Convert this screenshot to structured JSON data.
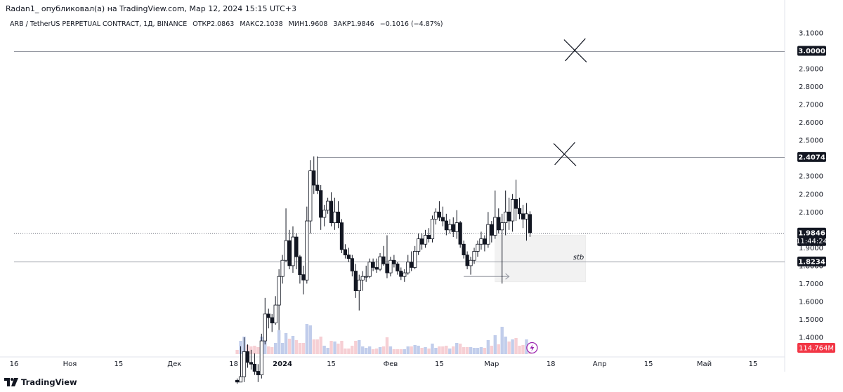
{
  "header": {
    "author": "Radan1_",
    "published_text": "опубликовал(а) на TradingView.com, Мар 12, 2024 15:15 UTC+3"
  },
  "legend": {
    "symbol": "ARB / TetherUS PERPETUAL CONTRACT, 1Д, BINANCE",
    "open": "ОТКР2.0863",
    "high": "МАКС2.1038",
    "low": "МИН1.9608",
    "close": "ЗАКР1.9846",
    "change": "−0.1016 (−4.87%)"
  },
  "price_labels": {
    "level_top": "3.0000",
    "level_mid": "2.4074",
    "last_price": "1.9846",
    "countdown": "11:44:24",
    "level_support": "1.8234",
    "volume": "114.764M"
  },
  "annotation_text": "stb",
  "footer": {
    "brand": "TradingView"
  },
  "colors": {
    "candle_up_fill": "#ffffff",
    "candle_down_fill": "#131722",
    "candle_border": "#131722",
    "volume_up": "#b6c4e8",
    "volume_down": "#f4c7cc",
    "label_bg": "#131722",
    "volume_label_bg": "#f23645",
    "zone_fill": "#f2f2f2"
  },
  "chart_data": {
    "type": "candlestick",
    "title": "ARB / TetherUS PERPETUAL CONTRACT, 1Д, BINANCE",
    "y_ticks": [
      3.1,
      2.9,
      2.8,
      2.7,
      2.6,
      2.5,
      2.3,
      2.2,
      2.1,
      1.9,
      1.8,
      1.7,
      1.6,
      1.5,
      1.4
    ],
    "y_tick_labels": [
      "3.1000",
      "2.9000",
      "2.8000",
      "2.7000",
      "2.6000",
      "2.5000",
      "2.3000",
      "2.2000",
      "2.1000",
      "1.9000",
      "1.8000",
      "1.7000",
      "1.6000",
      "1.5000",
      "1.4000"
    ],
    "x_ticks": [
      {
        "label": "16",
        "date": "2023-10-16"
      },
      {
        "label": "Ноя",
        "date": "2023-11-01"
      },
      {
        "label": "15",
        "date": "2023-11-15"
      },
      {
        "label": "Дек",
        "date": "2023-12-01"
      },
      {
        "label": "18",
        "date": "2023-12-18"
      },
      {
        "label": "2024",
        "date": "2024-01-01",
        "bold": true
      },
      {
        "label": "15",
        "date": "2024-01-15"
      },
      {
        "label": "Фев",
        "date": "2024-02-01"
      },
      {
        "label": "15",
        "date": "2024-02-15"
      },
      {
        "label": "Мар",
        "date": "2024-03-01"
      },
      {
        "label": "18",
        "date": "2024-03-18"
      },
      {
        "label": "Апр",
        "date": "2024-04-01"
      },
      {
        "label": "15",
        "date": "2024-04-15"
      },
      {
        "label": "Май",
        "date": "2024-05-01"
      },
      {
        "label": "15",
        "date": "2024-05-15"
      }
    ],
    "horizontal_levels": [
      {
        "price": 3.0,
        "label": "3.0000",
        "style": "solid",
        "start_date": "2023-10-16"
      },
      {
        "price": 2.4074,
        "label": "2.4074",
        "style": "solid",
        "start_date": "2024-01-11"
      },
      {
        "price": 1.9846,
        "label": "1.9846",
        "style": "dotted",
        "start_date": "2023-10-16"
      },
      {
        "price": 1.8234,
        "label": "1.8234",
        "style": "solid",
        "start_date": "2023-10-16"
      }
    ],
    "cross_marks": [
      {
        "date": "2024-03-25",
        "price": 3.0
      },
      {
        "date": "2024-03-22",
        "price": 2.42
      }
    ],
    "zone": {
      "start": "2024-03-02",
      "end": "2024-03-28",
      "top": 1.97,
      "bottom": 1.71,
      "label": "stb"
    },
    "arrow": {
      "start": "2024-02-22",
      "end": "2024-03-06",
      "price": 1.74
    },
    "candles": [
      [
        "2023-12-19",
        1.16,
        1.17,
        1.14,
        1.15
      ],
      [
        "2023-12-20",
        1.15,
        1.35,
        1.16,
        1.18
      ],
      [
        "2023-12-21",
        1.18,
        1.4,
        1.15,
        1.32
      ],
      [
        "2023-12-22",
        1.32,
        1.36,
        1.23,
        1.26
      ],
      [
        "2023-12-23",
        1.26,
        1.33,
        1.22,
        1.25
      ],
      [
        "2023-12-24",
        1.25,
        1.31,
        1.19,
        1.21
      ],
      [
        "2023-12-25",
        1.21,
        1.25,
        1.15,
        1.19
      ],
      [
        "2023-12-26",
        1.19,
        1.42,
        1.17,
        1.38
      ],
      [
        "2023-12-27",
        1.38,
        1.62,
        1.36,
        1.53
      ],
      [
        "2023-12-28",
        1.53,
        1.56,
        1.45,
        1.51
      ],
      [
        "2023-12-29",
        1.51,
        1.53,
        1.43,
        1.48
      ],
      [
        "2023-12-30",
        1.48,
        1.63,
        1.47,
        1.58
      ],
      [
        "2023-12-31",
        1.58,
        1.78,
        1.44,
        1.74
      ],
      [
        "2024-01-01",
        1.74,
        1.86,
        1.7,
        1.83
      ],
      [
        "2024-01-02",
        1.83,
        2.12,
        1.82,
        1.94
      ],
      [
        "2024-01-03",
        1.94,
        2.0,
        1.78,
        1.8
      ],
      [
        "2024-01-04",
        1.8,
        2.02,
        1.76,
        1.96
      ],
      [
        "2024-01-05",
        1.96,
        1.98,
        1.78,
        1.85
      ],
      [
        "2024-01-06",
        1.85,
        1.86,
        1.7,
        1.75
      ],
      [
        "2024-01-07",
        1.75,
        1.8,
        1.64,
        1.72
      ],
      [
        "2024-01-08",
        1.72,
        2.13,
        1.7,
        2.05
      ],
      [
        "2024-01-09",
        2.05,
        2.39,
        1.98,
        2.33
      ],
      [
        "2024-01-10",
        2.33,
        2.41,
        2.2,
        2.25
      ],
      [
        "2024-01-11",
        2.25,
        2.41,
        2.2,
        2.22
      ],
      [
        "2024-01-12",
        2.22,
        2.25,
        2.0,
        2.07
      ],
      [
        "2024-01-13",
        2.07,
        2.14,
        2.02,
        2.11
      ],
      [
        "2024-01-14",
        2.11,
        2.18,
        2.09,
        2.16
      ],
      [
        "2024-01-15",
        2.16,
        2.21,
        2.02,
        2.04
      ],
      [
        "2024-01-16",
        2.04,
        2.18,
        2.0,
        2.1
      ],
      [
        "2024-01-17",
        2.1,
        2.16,
        2.01,
        2.04
      ],
      [
        "2024-01-18",
        2.04,
        2.06,
        1.87,
        1.89
      ],
      [
        "2024-01-19",
        1.89,
        1.92,
        1.84,
        1.86
      ],
      [
        "2024-01-20",
        1.86,
        1.9,
        1.82,
        1.84
      ],
      [
        "2024-01-21",
        1.84,
        1.86,
        1.74,
        1.77
      ],
      [
        "2024-01-22",
        1.77,
        1.81,
        1.62,
        1.66
      ],
      [
        "2024-01-23",
        1.66,
        1.75,
        1.55,
        1.72
      ],
      [
        "2024-01-24",
        1.72,
        1.77,
        1.66,
        1.74
      ],
      [
        "2024-01-25",
        1.74,
        1.8,
        1.71,
        1.74
      ],
      [
        "2024-01-26",
        1.74,
        1.84,
        1.73,
        1.82
      ],
      [
        "2024-01-27",
        1.82,
        1.84,
        1.77,
        1.79
      ],
      [
        "2024-01-28",
        1.79,
        1.84,
        1.76,
        1.78
      ],
      [
        "2024-01-29",
        1.78,
        1.87,
        1.77,
        1.85
      ],
      [
        "2024-01-30",
        1.85,
        1.91,
        1.8,
        1.81
      ],
      [
        "2024-01-31",
        1.81,
        1.97,
        1.73,
        1.76
      ],
      [
        "2024-02-01",
        1.76,
        1.85,
        1.74,
        1.83
      ],
      [
        "2024-02-02",
        1.83,
        1.86,
        1.79,
        1.81
      ],
      [
        "2024-02-03",
        1.81,
        1.82,
        1.75,
        1.77
      ],
      [
        "2024-02-04",
        1.77,
        1.79,
        1.72,
        1.74
      ],
      [
        "2024-02-05",
        1.74,
        1.78,
        1.71,
        1.76
      ],
      [
        "2024-02-06",
        1.76,
        1.86,
        1.75,
        1.82
      ],
      [
        "2024-02-07",
        1.82,
        1.88,
        1.77,
        1.79
      ],
      [
        "2024-02-08",
        1.79,
        1.91,
        1.78,
        1.88
      ],
      [
        "2024-02-09",
        1.88,
        1.98,
        1.86,
        1.95
      ],
      [
        "2024-02-10",
        1.95,
        1.98,
        1.89,
        1.92
      ],
      [
        "2024-02-11",
        1.92,
        2.0,
        1.9,
        1.97
      ],
      [
        "2024-02-12",
        1.97,
        2.01,
        1.93,
        1.95
      ],
      [
        "2024-02-13",
        1.95,
        2.08,
        1.93,
        2.06
      ],
      [
        "2024-02-14",
        2.06,
        2.12,
        2.03,
        2.1
      ],
      [
        "2024-02-15",
        2.1,
        2.16,
        2.05,
        2.07
      ],
      [
        "2024-02-16",
        2.07,
        2.13,
        2.02,
        2.05
      ],
      [
        "2024-02-17",
        2.05,
        2.09,
        1.97,
        2.0
      ],
      [
        "2024-02-18",
        2.0,
        2.06,
        1.98,
        2.03
      ],
      [
        "2024-02-19",
        2.03,
        2.07,
        1.96,
        1.99
      ],
      [
        "2024-02-20",
        1.99,
        2.11,
        1.95,
        2.04
      ],
      [
        "2024-02-21",
        2.04,
        2.05,
        1.9,
        1.92
      ],
      [
        "2024-02-22",
        1.92,
        1.94,
        1.84,
        1.86
      ],
      [
        "2024-02-23",
        1.86,
        1.88,
        1.78,
        1.8
      ],
      [
        "2024-02-24",
        1.8,
        1.85,
        1.75,
        1.83
      ],
      [
        "2024-02-25",
        1.83,
        1.9,
        1.81,
        1.88
      ],
      [
        "2024-02-26",
        1.88,
        1.94,
        1.85,
        1.92
      ],
      [
        "2024-02-27",
        1.92,
        1.99,
        1.89,
        1.95
      ],
      [
        "2024-02-28",
        1.95,
        1.97,
        1.88,
        1.92
      ],
      [
        "2024-02-29",
        1.92,
        2.1,
        1.9,
        2.03
      ],
      [
        "2024-03-01",
        2.03,
        2.05,
        1.93,
        1.97
      ],
      [
        "2024-03-02",
        1.97,
        2.22,
        1.95,
        2.07
      ],
      [
        "2024-03-03",
        2.07,
        2.12,
        1.98,
        2.0
      ],
      [
        "2024-03-04",
        2.0,
        2.09,
        1.7,
        2.04
      ],
      [
        "2024-03-05",
        2.04,
        2.22,
        1.97,
        2.1
      ],
      [
        "2024-03-06",
        2.1,
        2.18,
        2.0,
        2.05
      ],
      [
        "2024-03-07",
        2.05,
        2.2,
        1.99,
        2.17
      ],
      [
        "2024-03-08",
        2.17,
        2.28,
        2.05,
        2.12
      ],
      [
        "2024-03-09",
        2.12,
        2.18,
        2.06,
        2.09
      ],
      [
        "2024-03-10",
        2.09,
        2.14,
        2.01,
        2.06
      ],
      [
        "2024-03-11",
        2.06,
        2.15,
        1.94,
        2.09
      ],
      [
        "2024-03-12",
        2.0863,
        2.1038,
        1.9608,
        1.9846
      ]
    ]
  }
}
